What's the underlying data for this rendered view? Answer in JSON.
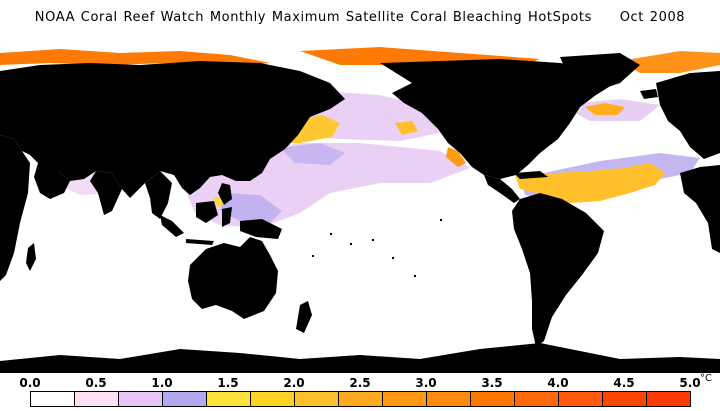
{
  "title": "NOAA Coral Reef Watch Monthly Maximum Satellite Coral Bleaching HotSpots",
  "date": "Oct 2008",
  "legend": {
    "ticks": [
      "0.0",
      "0.5",
      "1.0",
      "1.5",
      "2.0",
      "2.5",
      "3.0",
      "3.5",
      "4.0",
      "4.5",
      "5.0"
    ],
    "unit": "°C",
    "colors": [
      "#ffffff",
      "#ffe0f4",
      "#e8c4f6",
      "#b4a8ee",
      "#ffe23c",
      "#ffd226",
      "#ffbf2a",
      "#ffaa20",
      "#ff9a14",
      "#ff8a10",
      "#ff7600",
      "#ff6a08",
      "#ff5a0e",
      "#ff4600",
      "#ff3a00"
    ]
  },
  "colors": {
    "land": "#000000",
    "ocean": "#ffffff"
  }
}
